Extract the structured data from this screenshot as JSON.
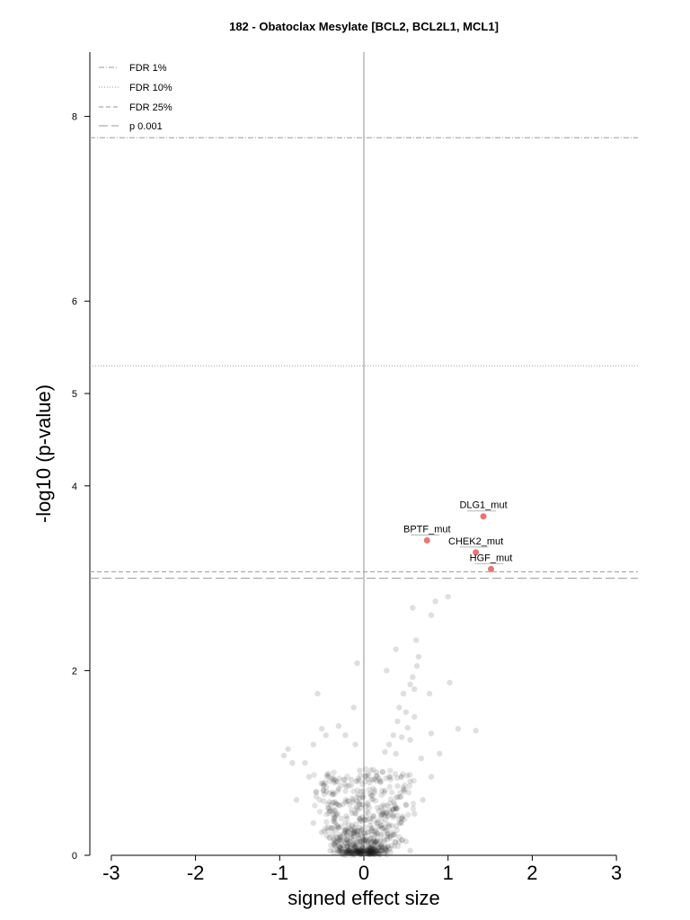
{
  "chart_data": {
    "type": "scatter",
    "title": "182 - Obatoclax Mesylate [BCL2, BCL2L1, MCL1]",
    "xlabel": "signed effect size",
    "ylabel": "-log10 (p-value)",
    "xlim": [
      -3,
      3
    ],
    "ylim": [
      0,
      8.7
    ],
    "x_ticks": [
      -3,
      -2,
      -1,
      0,
      1,
      2,
      3
    ],
    "y_ticks": [
      0,
      2,
      4,
      5,
      6,
      8
    ],
    "grid": false,
    "legend_position": "top-left",
    "thresholds": [
      {
        "name": "FDR 1%",
        "y": 7.77,
        "style": "dashdot"
      },
      {
        "name": "FDR 10%",
        "y": 5.3,
        "style": "dotted"
      },
      {
        "name": "FDR 25%",
        "y": 3.07,
        "style": "dashed"
      },
      {
        "name": "p 0.001",
        "y": 3.0,
        "style": "longdash"
      }
    ],
    "highlighted_points": [
      {
        "label": "DLG1_mut",
        "x": 1.42,
        "y": 3.67
      },
      {
        "label": "BPTF_mut",
        "x": 0.75,
        "y": 3.41
      },
      {
        "label": "CHEK2_mut",
        "x": 1.33,
        "y": 3.28
      },
      {
        "label": "HGF_mut",
        "x": 1.51,
        "y": 3.1
      }
    ],
    "background_points": [
      [
        1.0,
        2.8
      ],
      [
        0.85,
        2.75
      ],
      [
        0.58,
        2.68
      ],
      [
        0.8,
        2.6
      ],
      [
        0.62,
        2.33
      ],
      [
        0.38,
        2.23
      ],
      [
        0.65,
        2.15
      ],
      [
        0.27,
        2.0
      ],
      [
        0.63,
        2.05
      ],
      [
        0.58,
        1.93
      ],
      [
        0.55,
        1.85
      ],
      [
        0.6,
        1.8
      ],
      [
        0.78,
        1.75
      ],
      [
        1.02,
        1.87
      ],
      [
        0.47,
        1.75
      ],
      [
        0.42,
        1.6
      ],
      [
        0.5,
        1.55
      ],
      [
        0.6,
        1.5
      ],
      [
        0.4,
        1.45
      ],
      [
        0.52,
        1.38
      ],
      [
        0.35,
        1.3
      ],
      [
        0.45,
        1.28
      ],
      [
        0.3,
        1.2
      ],
      [
        0.55,
        1.25
      ],
      [
        0.25,
        1.12
      ],
      [
        0.38,
        1.1
      ],
      [
        0.8,
        1.32
      ],
      [
        0.9,
        1.1
      ],
      [
        1.12,
        1.37
      ],
      [
        1.33,
        1.35
      ],
      [
        0.68,
        1.05
      ],
      [
        -0.55,
        1.75
      ],
      [
        -0.5,
        1.37
      ],
      [
        -0.45,
        1.3
      ],
      [
        -0.3,
        1.4
      ],
      [
        -0.22,
        1.3
      ],
      [
        -0.9,
        1.15
      ],
      [
        -0.95,
        1.08
      ],
      [
        -0.85,
        1.0
      ],
      [
        -0.7,
        1.0
      ],
      [
        -0.6,
        1.2
      ],
      [
        -0.1,
        1.2
      ],
      [
        -0.05,
        0.92
      ],
      [
        -0.65,
        0.85
      ],
      [
        -0.8,
        0.6
      ],
      [
        -0.48,
        0.7
      ],
      [
        -0.3,
        0.72
      ],
      [
        -0.15,
        0.82
      ],
      [
        -0.4,
        0.48
      ],
      [
        -0.25,
        0.55
      ],
      [
        0.15,
        0.9
      ],
      [
        0.2,
        0.8
      ],
      [
        0.3,
        0.85
      ],
      [
        0.25,
        0.7
      ],
      [
        0.4,
        0.75
      ],
      [
        0.55,
        0.8
      ],
      [
        0.8,
        0.85
      ],
      [
        0.7,
        0.6
      ],
      [
        0.5,
        0.55
      ],
      [
        0.6,
        0.45
      ],
      [
        0.35,
        0.5
      ],
      [
        0.45,
        0.4
      ],
      [
        0.1,
        0.65
      ],
      [
        0.05,
        0.55
      ],
      [
        -0.2,
        0.4
      ],
      [
        -0.1,
        0.45
      ],
      [
        -0.3,
        0.3
      ],
      [
        -0.5,
        0.25
      ],
      [
        -0.6,
        0.35
      ],
      [
        0.15,
        0.35
      ],
      [
        0.25,
        0.3
      ],
      [
        0.3,
        0.2
      ],
      [
        0.5,
        0.15
      ],
      [
        0.55,
        0.05
      ],
      [
        -0.05,
        0.3
      ],
      [
        0.05,
        0.25
      ],
      [
        -0.15,
        0.2
      ],
      [
        -0.35,
        0.15
      ],
      [
        -0.4,
        0.05
      ],
      [
        0.12,
        0.12
      ],
      [
        0.2,
        0.05
      ],
      [
        -0.1,
        0.08
      ],
      [
        0.0,
        0.15
      ],
      [
        0.08,
        0.02
      ],
      [
        -0.08,
        2.08
      ],
      [
        -0.12,
        1.6
      ],
      [
        -0.02,
        0.55
      ]
    ]
  },
  "legend": {
    "fdr1": "FDR 1%",
    "fdr10": "FDR 10%",
    "fdr25": "FDR 25%",
    "p001": "p 0.001"
  },
  "colors": {
    "threshold": "#9a9a9a",
    "zero_line": "#c8c8c8",
    "background_point": "#1a1a1a",
    "highlight_point": "#e87575",
    "axis": "#000000"
  }
}
